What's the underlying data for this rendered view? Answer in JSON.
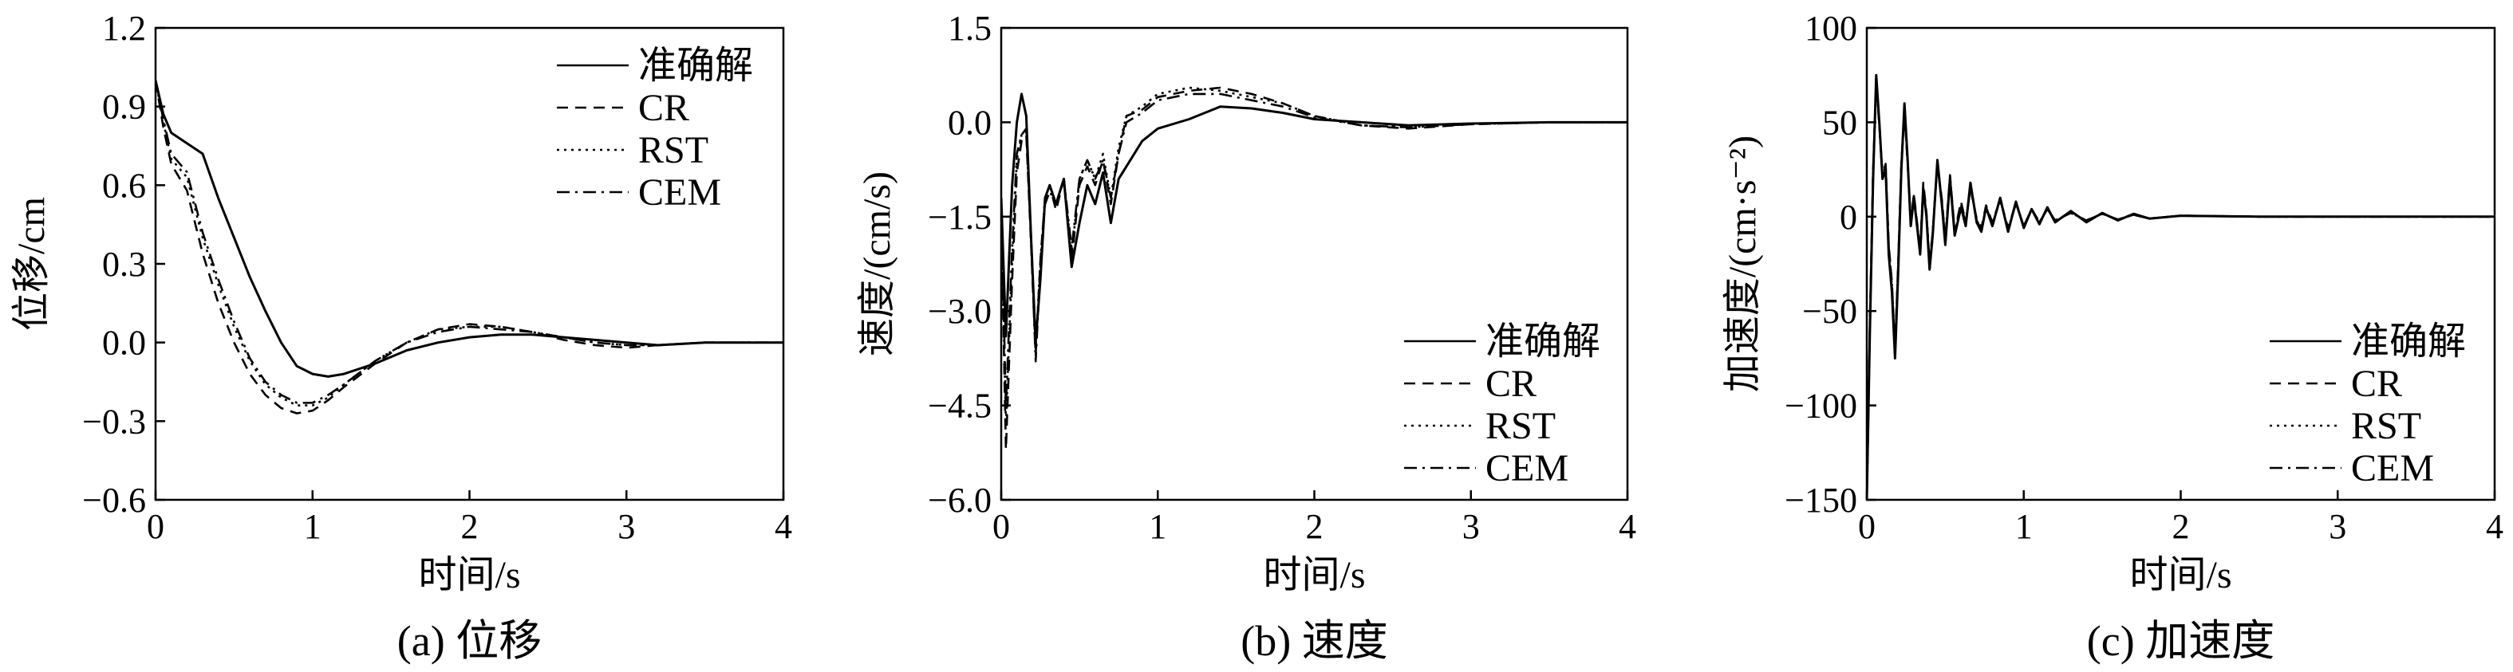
{
  "chart_data": [
    {
      "type": "line",
      "caption": "(a) 位移",
      "xlabel": "时间/s",
      "ylabel": "位移/cm",
      "xlim": [
        0,
        4
      ],
      "ylim": [
        -0.6,
        1.2
      ],
      "xticks": [
        0,
        1,
        2,
        3,
        4
      ],
      "yticks": [
        -0.6,
        -0.3,
        0.0,
        0.3,
        0.6,
        0.9,
        1.2
      ],
      "xtick_labels": [
        "0",
        "1",
        "2",
        "3",
        "4"
      ],
      "ytick_labels": [
        "−0.6",
        "−0.3",
        "0.0",
        "0.3",
        "0.6",
        "0.9",
        "1.2"
      ],
      "grid": false,
      "legend_position": "top-right",
      "series": [
        {
          "name": "准确解",
          "style": "solid",
          "x": [
            0,
            0.05,
            0.1,
            0.2,
            0.3,
            0.4,
            0.5,
            0.6,
            0.7,
            0.8,
            0.9,
            1.0,
            1.1,
            1.2,
            1.4,
            1.6,
            1.8,
            2.0,
            2.2,
            2.4,
            2.6,
            2.8,
            3.0,
            3.2,
            3.5,
            4.0
          ],
          "y": [
            1.0,
            0.87,
            0.8,
            0.76,
            0.72,
            0.55,
            0.4,
            0.25,
            0.12,
            0.0,
            -0.09,
            -0.12,
            -0.13,
            -0.12,
            -0.08,
            -0.03,
            0.0,
            0.02,
            0.03,
            0.03,
            0.02,
            0.01,
            0.0,
            -0.01,
            0.0,
            0.0
          ]
        },
        {
          "name": "CR",
          "style": "dashed",
          "x": [
            0,
            0.05,
            0.1,
            0.2,
            0.3,
            0.4,
            0.5,
            0.6,
            0.7,
            0.8,
            0.9,
            1.0,
            1.1,
            1.2,
            1.4,
            1.6,
            1.8,
            2.0,
            2.2,
            2.4,
            2.6,
            2.8,
            3.0,
            3.2,
            3.5,
            4.0
          ],
          "y": [
            1.0,
            0.82,
            0.68,
            0.58,
            0.34,
            0.15,
            0.0,
            -0.12,
            -0.2,
            -0.25,
            -0.27,
            -0.26,
            -0.22,
            -0.17,
            -0.08,
            0.0,
            0.05,
            0.07,
            0.06,
            0.04,
            0.01,
            -0.01,
            -0.02,
            -0.01,
            0.0,
            0.0
          ]
        },
        {
          "name": "RST",
          "style": "dotted",
          "x": [
            0,
            0.05,
            0.1,
            0.2,
            0.3,
            0.4,
            0.5,
            0.6,
            0.7,
            0.8,
            0.9,
            1.0,
            1.1,
            1.2,
            1.4,
            1.6,
            1.8,
            2.0,
            2.2,
            2.4,
            2.6,
            2.8,
            3.0,
            3.2,
            3.5,
            4.0
          ],
          "y": [
            1.0,
            0.84,
            0.7,
            0.63,
            0.4,
            0.22,
            0.06,
            -0.07,
            -0.16,
            -0.21,
            -0.24,
            -0.24,
            -0.21,
            -0.16,
            -0.07,
            0.0,
            0.05,
            0.06,
            0.06,
            0.04,
            0.02,
            0.0,
            -0.01,
            -0.01,
            0.0,
            0.0
          ]
        },
        {
          "name": "CEM",
          "style": "dashdot",
          "x": [
            0,
            0.05,
            0.1,
            0.2,
            0.3,
            0.4,
            0.5,
            0.6,
            0.7,
            0.8,
            0.9,
            1.0,
            1.1,
            1.2,
            1.4,
            1.6,
            1.8,
            2.0,
            2.2,
            2.4,
            2.6,
            2.8,
            3.0,
            3.2,
            3.5,
            4.0
          ],
          "y": [
            1.0,
            0.85,
            0.72,
            0.65,
            0.42,
            0.24,
            0.08,
            -0.06,
            -0.15,
            -0.2,
            -0.23,
            -0.23,
            -0.2,
            -0.16,
            -0.07,
            0.0,
            0.04,
            0.06,
            0.05,
            0.04,
            0.02,
            0.0,
            -0.01,
            -0.01,
            0.0,
            0.0
          ]
        }
      ]
    },
    {
      "type": "line",
      "caption": "(b) 速度",
      "xlabel": "时间/s",
      "ylabel": "速度/(cm/s)",
      "xlim": [
        0,
        4
      ],
      "ylim": [
        -6.0,
        1.5
      ],
      "xticks": [
        0,
        1,
        2,
        3,
        4
      ],
      "yticks": [
        -6.0,
        -4.5,
        -3.0,
        -1.5,
        0.0,
        1.5
      ],
      "xtick_labels": [
        "0",
        "1",
        "2",
        "3",
        "4"
      ],
      "ytick_labels": [
        "−6.0",
        "−4.5",
        "−3.0",
        "−1.5",
        "0.0",
        "1.5"
      ],
      "grid": false,
      "legend_position": "bottom-right",
      "series": [
        {
          "name": "准确解",
          "style": "solid",
          "x": [
            0,
            0.03,
            0.07,
            0.1,
            0.13,
            0.16,
            0.19,
            0.22,
            0.25,
            0.28,
            0.31,
            0.35,
            0.4,
            0.45,
            0.5,
            0.55,
            0.6,
            0.65,
            0.7,
            0.75,
            0.8,
            0.9,
            1.0,
            1.2,
            1.4,
            1.6,
            1.8,
            2.0,
            2.3,
            2.6,
            3.0,
            3.5,
            4.0
          ],
          "y": [
            -1.2,
            -3.4,
            -1.0,
            0.0,
            0.45,
            0.1,
            -1.8,
            -3.5,
            -2.5,
            -1.2,
            -1.0,
            -1.3,
            -0.9,
            -2.3,
            -1.6,
            -1.0,
            -1.3,
            -0.8,
            -1.6,
            -0.9,
            -0.7,
            -0.3,
            -0.1,
            0.05,
            0.25,
            0.22,
            0.15,
            0.05,
            0.0,
            -0.05,
            -0.02,
            0.0,
            0.0
          ]
        },
        {
          "name": "CR",
          "style": "dashed",
          "x": [
            0,
            0.03,
            0.07,
            0.1,
            0.13,
            0.16,
            0.19,
            0.22,
            0.25,
            0.28,
            0.31,
            0.35,
            0.4,
            0.45,
            0.5,
            0.55,
            0.6,
            0.65,
            0.7,
            0.75,
            0.8,
            0.9,
            1.0,
            1.2,
            1.4,
            1.6,
            1.8,
            2.0,
            2.3,
            2.6,
            3.0,
            3.5,
            4.0
          ],
          "y": [
            -1.5,
            -5.2,
            -2.5,
            -0.8,
            -0.3,
            -0.2,
            -1.9,
            -3.7,
            -2.2,
            -1.2,
            -1.0,
            -1.4,
            -0.9,
            -2.2,
            -1.0,
            -0.7,
            -1.0,
            -0.6,
            -1.3,
            -0.5,
            0.1,
            0.2,
            0.4,
            0.5,
            0.55,
            0.45,
            0.3,
            0.1,
            -0.05,
            -0.1,
            -0.03,
            0.0,
            0.0
          ]
        },
        {
          "name": "RST",
          "style": "dotted",
          "x": [
            0,
            0.03,
            0.07,
            0.1,
            0.13,
            0.16,
            0.19,
            0.22,
            0.25,
            0.28,
            0.31,
            0.35,
            0.4,
            0.45,
            0.5,
            0.55,
            0.6,
            0.65,
            0.7,
            0.75,
            0.8,
            0.9,
            1.0,
            1.2,
            1.4,
            1.6,
            1.8,
            2.0,
            2.3,
            2.6,
            3.0,
            3.5,
            4.0
          ],
          "y": [
            -1.4,
            -4.8,
            -2.2,
            -0.6,
            -0.2,
            -0.15,
            -1.8,
            -3.6,
            -2.2,
            -1.2,
            -1.0,
            -1.3,
            -0.9,
            -2.1,
            -0.9,
            -0.6,
            -0.9,
            -0.5,
            -1.2,
            -0.4,
            0.1,
            0.25,
            0.45,
            0.55,
            0.5,
            0.4,
            0.3,
            0.1,
            -0.05,
            -0.08,
            -0.03,
            0.0,
            0.0
          ]
        },
        {
          "name": "CEM",
          "style": "dashdot",
          "x": [
            0,
            0.03,
            0.07,
            0.1,
            0.13,
            0.16,
            0.19,
            0.22,
            0.25,
            0.28,
            0.31,
            0.35,
            0.4,
            0.45,
            0.5,
            0.55,
            0.6,
            0.65,
            0.7,
            0.75,
            0.8,
            0.9,
            1.0,
            1.2,
            1.4,
            1.6,
            1.8,
            2.0,
            2.3,
            2.6,
            3.0,
            3.5,
            4.0
          ],
          "y": [
            -1.3,
            -4.5,
            -2.0,
            -0.5,
            -0.2,
            -0.1,
            -1.8,
            -3.8,
            -2.3,
            -1.3,
            -1.1,
            -1.3,
            -0.9,
            -2.0,
            -0.9,
            -0.6,
            -0.9,
            -0.6,
            -1.2,
            -0.5,
            0.0,
            0.15,
            0.35,
            0.45,
            0.45,
            0.35,
            0.25,
            0.08,
            -0.05,
            -0.08,
            -0.03,
            0.0,
            0.0
          ]
        }
      ]
    },
    {
      "type": "line",
      "caption": "(c) 加速度",
      "xlabel": "时间/s",
      "ylabel": "加速度/(cm·s⁻²)",
      "xlim": [
        0,
        4
      ],
      "ylim": [
        -150,
        100
      ],
      "xticks": [
        0,
        1,
        2,
        3,
        4
      ],
      "yticks": [
        -150,
        -100,
        -50,
        0,
        50,
        100
      ],
      "xtick_labels": [
        "0",
        "1",
        "2",
        "3",
        "4"
      ],
      "ytick_labels": [
        "−150",
        "−100",
        "−50",
        "0",
        "50",
        "100"
      ],
      "grid": false,
      "legend_position": "bottom-right",
      "series": [
        {
          "name": "准确解",
          "style": "solid",
          "x": [
            0,
            0.02,
            0.04,
            0.06,
            0.08,
            0.1,
            0.12,
            0.14,
            0.16,
            0.18,
            0.2,
            0.22,
            0.24,
            0.26,
            0.28,
            0.3,
            0.32,
            0.34,
            0.36,
            0.38,
            0.4,
            0.42,
            0.45,
            0.48,
            0.5,
            0.53,
            0.56,
            0.6,
            0.63,
            0.66,
            0.7,
            0.73,
            0.76,
            0.8,
            0.85,
            0.9,
            0.95,
            1.0,
            1.05,
            1.1,
            1.15,
            1.2,
            1.3,
            1.4,
            1.5,
            1.6,
            1.7,
            1.8,
            2.0,
            2.5,
            3.0,
            3.5,
            4.0
          ],
          "y": [
            -150,
            -60,
            20,
            75,
            50,
            20,
            25,
            -20,
            -40,
            -75,
            -30,
            25,
            60,
            30,
            -5,
            10,
            -5,
            -20,
            15,
            0,
            -28,
            -10,
            30,
            5,
            -15,
            20,
            -10,
            5,
            -5,
            18,
            -3,
            -8,
            5,
            -5,
            10,
            -8,
            8,
            -6,
            4,
            -4,
            5,
            -3,
            3,
            -3,
            2,
            -2,
            1.5,
            -1,
            0.5,
            0,
            0,
            0,
            0
          ]
        },
        {
          "name": "CR",
          "style": "dashed",
          "x": [
            0,
            0.02,
            0.04,
            0.06,
            0.08,
            0.1,
            0.12,
            0.14,
            0.16,
            0.18,
            0.2,
            0.22,
            0.24,
            0.26,
            0.28,
            0.3,
            0.32,
            0.34,
            0.36,
            0.38,
            0.4,
            0.42,
            0.45,
            0.48,
            0.5,
            0.53,
            0.56,
            0.6,
            0.63,
            0.66,
            0.7,
            0.73,
            0.76,
            0.8,
            0.85,
            0.9,
            0.95,
            1.0,
            1.05,
            1.1,
            1.15,
            1.2,
            1.3,
            1.4,
            1.5,
            1.6,
            1.7,
            1.8,
            2.0,
            2.5,
            3.0,
            3.5,
            4.0
          ],
          "y": [
            -150,
            -55,
            25,
            70,
            48,
            22,
            28,
            -15,
            -35,
            -70,
            -25,
            28,
            55,
            28,
            -3,
            12,
            -3,
            -18,
            18,
            2,
            -25,
            -8,
            28,
            8,
            -12,
            22,
            -8,
            8,
            -3,
            15,
            -1,
            -6,
            6,
            -3,
            9,
            -6,
            7,
            -5,
            4,
            -3,
            4,
            -2,
            2,
            -2,
            1.5,
            -1.5,
            1,
            -1,
            0.5,
            0,
            0,
            0,
            0
          ]
        },
        {
          "name": "RST",
          "style": "dotted",
          "x": [
            0,
            0.02,
            0.04,
            0.06,
            0.08,
            0.1,
            0.12,
            0.14,
            0.16,
            0.18,
            0.2,
            0.22,
            0.24,
            0.26,
            0.28,
            0.3,
            0.32,
            0.34,
            0.36,
            0.38,
            0.4,
            0.42,
            0.45,
            0.48,
            0.5,
            0.53,
            0.56,
            0.6,
            0.63,
            0.66,
            0.7,
            0.73,
            0.76,
            0.8,
            0.85,
            0.9,
            0.95,
            1.0,
            1.05,
            1.1,
            1.15,
            1.2,
            1.3,
            1.4,
            1.5,
            1.6,
            1.7,
            1.8,
            2.0,
            2.5,
            3.0,
            3.5,
            4.0
          ],
          "y": [
            -150,
            -58,
            22,
            72,
            49,
            21,
            26,
            -17,
            -37,
            -72,
            -27,
            26,
            57,
            29,
            -4,
            11,
            -4,
            -19,
            16,
            1,
            -26,
            -9,
            29,
            6,
            -13,
            21,
            -9,
            6,
            -4,
            16,
            -2,
            -7,
            5,
            -4,
            9,
            -7,
            7,
            -5,
            4,
            -3,
            4,
            -2,
            2,
            -2,
            1.5,
            -1.5,
            1,
            -1,
            0.5,
            0,
            0,
            0,
            0
          ]
        },
        {
          "name": "CEM",
          "style": "dashdot",
          "x": [
            0,
            0.02,
            0.04,
            0.06,
            0.08,
            0.1,
            0.12,
            0.14,
            0.16,
            0.18,
            0.2,
            0.22,
            0.24,
            0.26,
            0.28,
            0.3,
            0.32,
            0.34,
            0.36,
            0.38,
            0.4,
            0.42,
            0.45,
            0.48,
            0.5,
            0.53,
            0.56,
            0.6,
            0.63,
            0.66,
            0.7,
            0.73,
            0.76,
            0.8,
            0.85,
            0.9,
            0.95,
            1.0,
            1.05,
            1.1,
            1.15,
            1.2,
            1.3,
            1.4,
            1.5,
            1.6,
            1.7,
            1.8,
            2.0,
            2.5,
            3.0,
            3.5,
            4.0
          ],
          "y": [
            -150,
            -57,
            23,
            73,
            49,
            21,
            27,
            -16,
            -36,
            -71,
            -26,
            27,
            58,
            29,
            -4,
            11,
            -4,
            -19,
            17,
            1,
            -26,
            -9,
            29,
            7,
            -13,
            21,
            -9,
            7,
            -4,
            16,
            -2,
            -7,
            5,
            -4,
            9,
            -7,
            7,
            -5,
            4,
            -3,
            4,
            -2,
            2,
            -2,
            1.5,
            -1.5,
            1,
            -1,
            0.5,
            0,
            0,
            0,
            0
          ]
        }
      ]
    }
  ]
}
